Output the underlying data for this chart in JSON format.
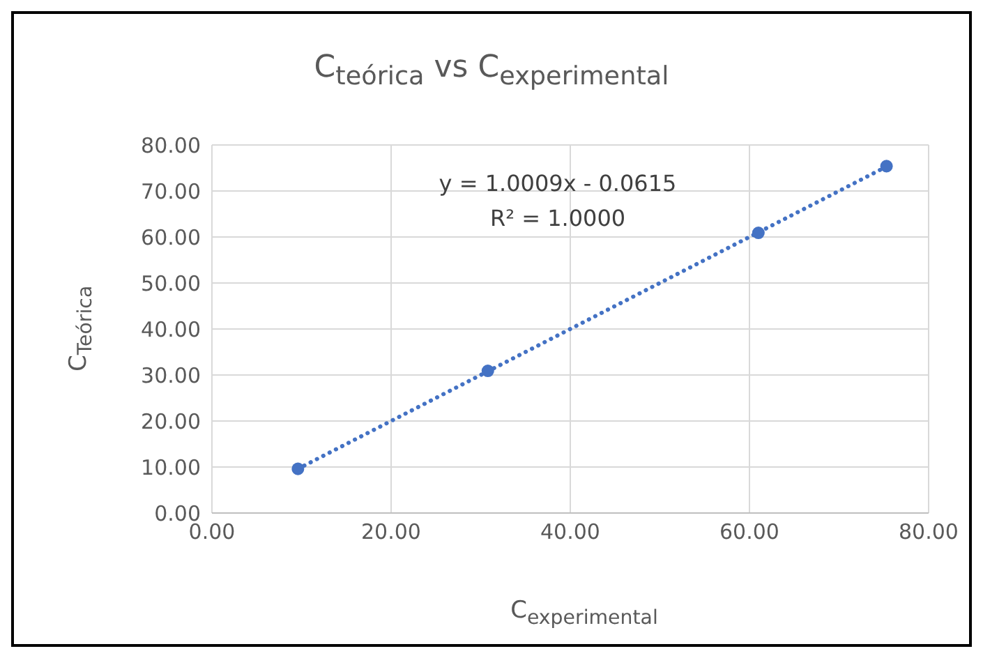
{
  "chart_data": {
    "type": "scatter",
    "title": "C$_{teórica}$ vs C$_{experimental}$",
    "xlabel": "C$_{experimental}$",
    "ylabel": "C$_{Teórica}$",
    "x": [
      9.6,
      30.8,
      61.0,
      75.3
    ],
    "series": [
      {
        "color": "#4472c4",
        "values": [
          9.6,
          30.9,
          60.9,
          75.4
        ],
        "marker": "circle"
      },
      {
        "type": "line",
        "color": "#4472c4",
        "x": [
          9.6,
          75.3
        ],
        "values": [
          9.6,
          75.3
        ],
        "marker": "none",
        "line_style": "dotted"
      }
    ],
    "xlim": [
      0,
      80
    ],
    "xticks": [
      {
        "value": 0,
        "label": "0.00"
      },
      {
        "value": 20,
        "label": "20.00"
      },
      {
        "value": 40,
        "label": "40.00"
      },
      {
        "value": 60,
        "label": "60.00"
      },
      {
        "value": 80,
        "label": "80.00"
      }
    ],
    "ylim": [
      0,
      80
    ],
    "yticks": [
      {
        "value": 0,
        "label": "0.00"
      },
      {
        "value": 10,
        "label": "10.00"
      },
      {
        "value": 20,
        "label": "20.00"
      },
      {
        "value": 30,
        "label": "30.00"
      },
      {
        "value": 40,
        "label": "40.00"
      },
      {
        "value": 50,
        "label": "50.00"
      },
      {
        "value": 60,
        "label": "60.00"
      },
      {
        "value": 70,
        "label": "70.00"
      },
      {
        "value": 80,
        "label": "80.00"
      }
    ],
    "annotations": [
      "y = 1.0009x - 0.0615",
      "R² = 1.0000"
    ],
    "grid": true
  }
}
